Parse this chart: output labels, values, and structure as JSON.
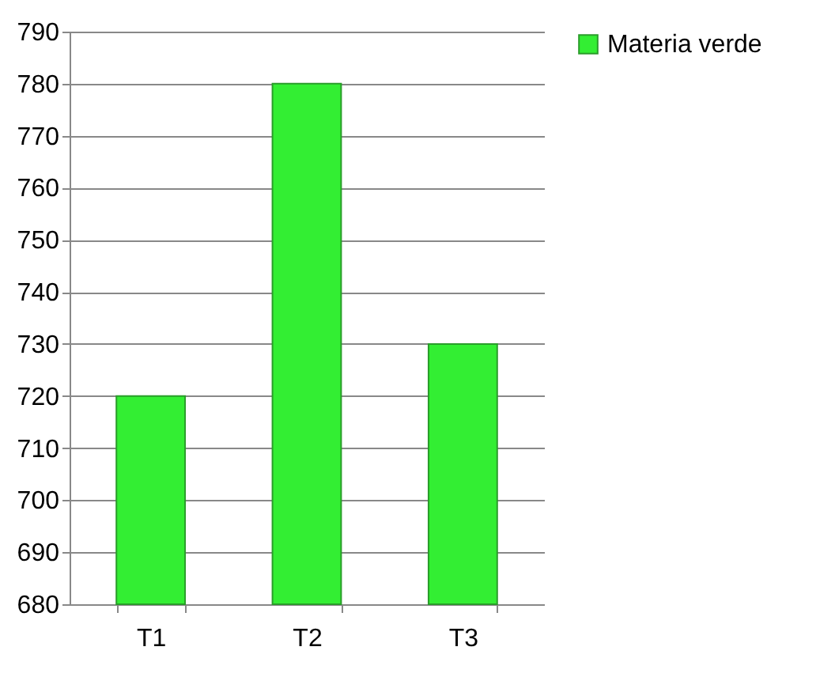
{
  "chart_data": {
    "type": "bar",
    "categories": [
      "T1",
      "T2",
      "T3"
    ],
    "series": [
      {
        "name": "Materia verde",
        "color": "#33ee33",
        "values": [
          720,
          780,
          730
        ]
      }
    ],
    "ylim": [
      680,
      790
    ],
    "yticks": [
      680,
      690,
      700,
      710,
      720,
      730,
      740,
      750,
      760,
      770,
      780,
      790
    ],
    "grid": "y",
    "legend": "right"
  }
}
